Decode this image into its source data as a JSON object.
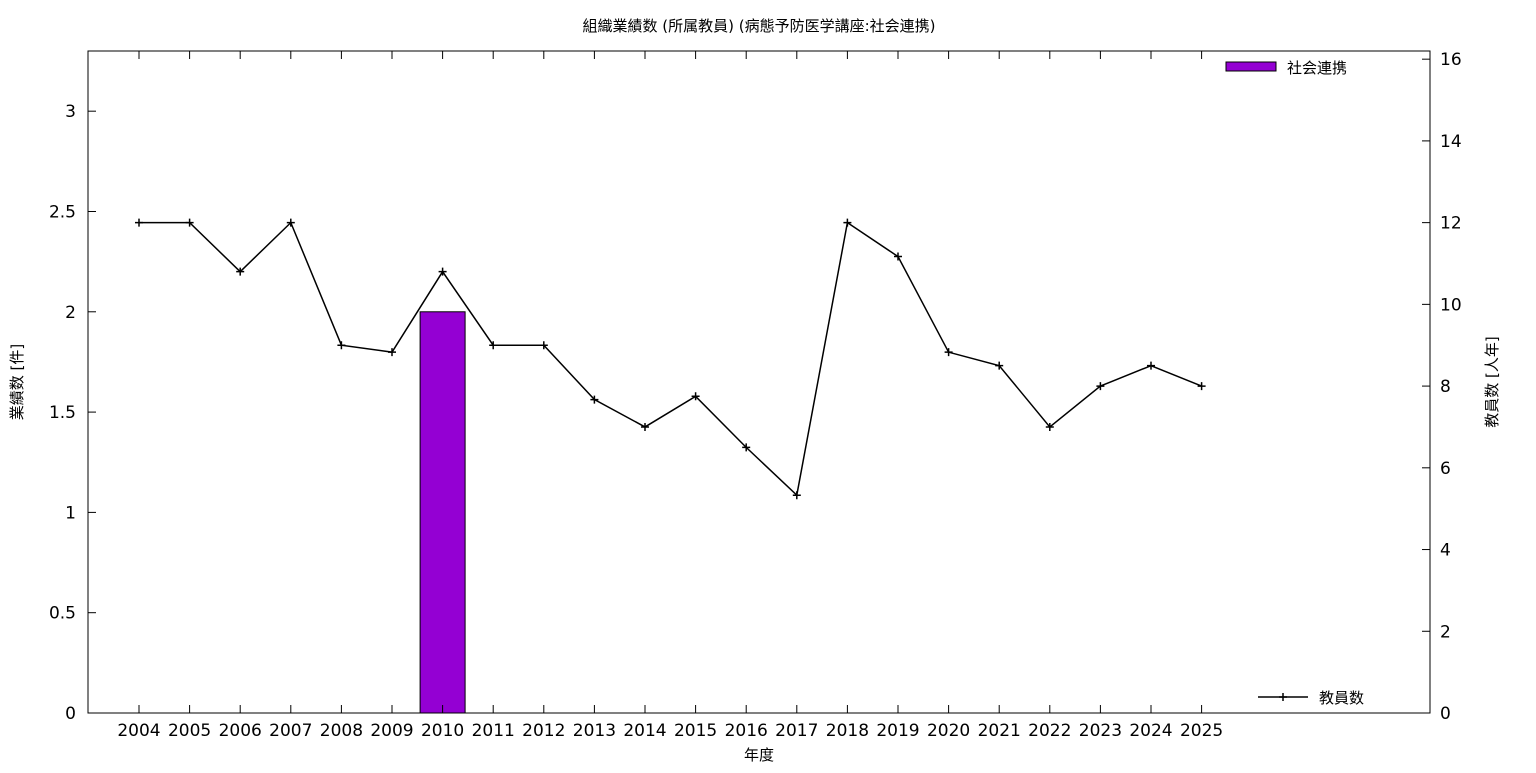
{
  "chart_data": {
    "type": "bar+line",
    "title": "組織業績数 (所属教員) (病態予防医学講座:社会連携)",
    "xlabel": "年度",
    "ylabel_left": "業績数 [件]",
    "ylabel_right": "教員数 [人年]",
    "categories": [
      "2004",
      "2005",
      "2006",
      "2007",
      "2008",
      "2009",
      "2010",
      "2011",
      "2012",
      "2013",
      "2014",
      "2015",
      "2016",
      "2017",
      "2018",
      "2019",
      "2020",
      "2021",
      "2022",
      "2023",
      "2024",
      "2025"
    ],
    "y_left": {
      "min": 0,
      "max": 3.3,
      "ticks": [
        0,
        0.5,
        1,
        1.5,
        2,
        2.5,
        3
      ],
      "tick_labels": [
        "0",
        "0.5",
        "1",
        "1.5",
        "2",
        "2.5",
        "3"
      ]
    },
    "y_right": {
      "min": 0,
      "max": 16.2,
      "ticks": [
        0,
        2,
        4,
        6,
        8,
        10,
        12,
        14,
        16
      ],
      "tick_labels": [
        "0",
        "2",
        "4",
        "6",
        "8",
        "10",
        "12",
        "14",
        "16"
      ]
    },
    "series": [
      {
        "name": "社会連携",
        "type": "bar",
        "axis": "left",
        "color": "#9400d3",
        "values": [
          0,
          0,
          0,
          0,
          0,
          0,
          2,
          0,
          0,
          0,
          0,
          0,
          0,
          0,
          0,
          0,
          0,
          0,
          0,
          0,
          0,
          0
        ]
      },
      {
        "name": "教員数",
        "type": "line",
        "axis": "right",
        "color": "#000000",
        "values": [
          12,
          12,
          10.8,
          12,
          9,
          8.83,
          10.8,
          9,
          9,
          7.67,
          7,
          7.75,
          6.5,
          5.33,
          12,
          11.17,
          8.83,
          8.5,
          7,
          8,
          8.5,
          8
        ]
      }
    ],
    "legend": [
      {
        "label": "社会連携",
        "placement": "top-right"
      },
      {
        "label": "教員数",
        "placement": "bottom-right"
      }
    ],
    "grid": false
  }
}
